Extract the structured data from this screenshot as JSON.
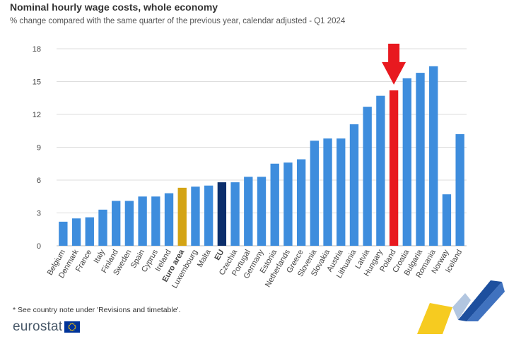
{
  "title": "Nominal hourly wage costs, whole economy",
  "subtitle": "% change compared with the same quarter of the previous year, calendar adjusted - Q1 2024",
  "footnote": "* See country note under 'Revisions and timetable'.",
  "logo_text": "eurostat",
  "colors": {
    "default": "#3e8ddd",
    "euro_area": "#d4a414",
    "eu": "#0b2e6b",
    "highlight": "#e8191f",
    "arrow": "#e8191f",
    "grid": "#dddddd"
  },
  "chart_data": {
    "type": "bar",
    "categories": [
      "Belgium",
      "Denmark",
      "France",
      "Italy",
      "Finland",
      "Sweden",
      "Spain",
      "Cyprus",
      "Ireland",
      "Euro area",
      "Luxembourg",
      "Malta",
      "EU",
      "Czechia",
      "Portugal",
      "Germany",
      "Estonia",
      "Netherlands",
      "Greece",
      "Slovenia",
      "Slovakia",
      "Austria",
      "Lithuania",
      "Latvia",
      "Hungary",
      "Poland",
      "Croatia",
      "Bulgaria",
      "Romania",
      "Norway",
      "Iceland"
    ],
    "values": [
      2.2,
      2.5,
      2.6,
      3.3,
      4.1,
      4.1,
      4.5,
      4.5,
      4.8,
      5.3,
      5.4,
      5.5,
      5.8,
      5.8,
      6.3,
      6.3,
      7.5,
      7.6,
      7.9,
      9.6,
      9.8,
      9.8,
      11.1,
      12.7,
      13.7,
      14.2,
      15.3,
      15.8,
      16.4,
      4.7,
      10.2
    ],
    "bold_categories": [
      "Euro area",
      "EU"
    ],
    "highlighted_category": "Poland",
    "yticks": [
      0,
      3,
      6,
      9,
      12,
      15,
      18
    ],
    "ylim": [
      0,
      18
    ],
    "grid": true
  }
}
